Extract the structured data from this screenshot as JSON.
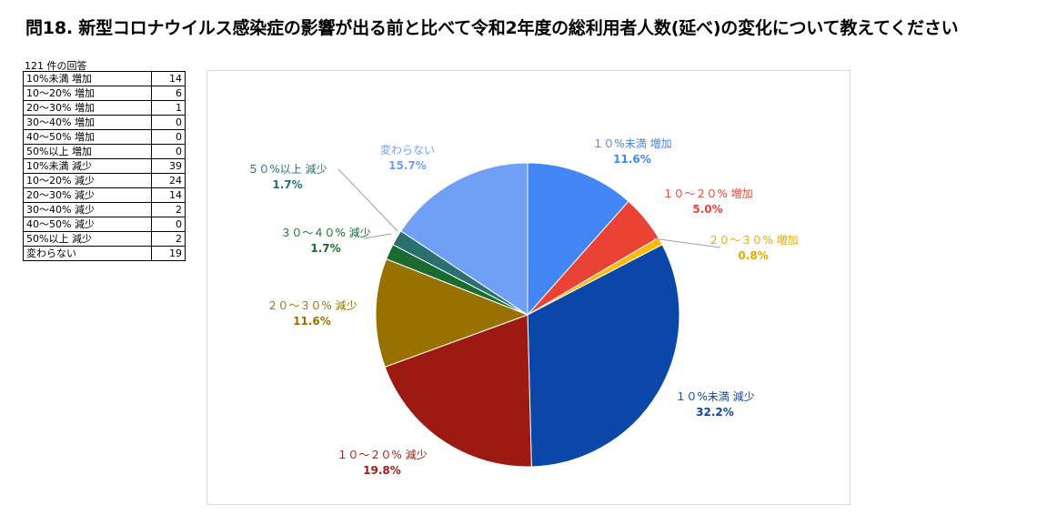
{
  "title": "問18. 新型コロナウイルス感染症の影響が出る前と比べて令和2年度の総利用者人数(延べ)の変化について教えてください",
  "response_count": "121 件の回答",
  "table": [
    {
      "label": "10%未満 増加",
      "value": "14"
    },
    {
      "label": "10～20% 増加",
      "value": "6"
    },
    {
      "label": "20～30% 増加",
      "value": "1"
    },
    {
      "label": "30～40% 増加",
      "value": "0"
    },
    {
      "label": "40～50% 増加",
      "value": "0"
    },
    {
      "label": "50%以上 増加",
      "value": "0"
    },
    {
      "label": "10%未満 減少",
      "value": "39"
    },
    {
      "label": "10～20% 減少",
      "value": "24"
    },
    {
      "label": "20～30% 減少",
      "value": "14"
    },
    {
      "label": "30～40% 減少",
      "value": "2"
    },
    {
      "label": "40～50% 減少",
      "value": "0"
    },
    {
      "label": "50%以上 減少",
      "value": "2"
    },
    {
      "label": "変わらない",
      "value": "19"
    }
  ],
  "chart_data": {
    "type": "pie",
    "title": "",
    "slices": [
      {
        "label": "１０%未満 増加",
        "value": 14,
        "pct": "11.6%",
        "color": "#4285f4"
      },
      {
        "label": "１０～２０% 増加",
        "value": 6,
        "pct": "5.0%",
        "color": "#ea4335"
      },
      {
        "label": "２０～３０% 増加",
        "value": 1,
        "pct": "0.8%",
        "color": "#fbbc04"
      },
      {
        "label": "１０%未満 減少",
        "value": 39,
        "pct": "32.2%",
        "color": "#0b47a8"
      },
      {
        "label": "１０～２０% 減少",
        "value": 24,
        "pct": "19.8%",
        "color": "#9c1a11"
      },
      {
        "label": "２０～３０% 減少",
        "value": 14,
        "pct": "11.6%",
        "color": "#987100"
      },
      {
        "label": "３０～４０% 減少",
        "value": 2,
        "pct": "1.7%",
        "color": "#1a6b2f"
      },
      {
        "label": "５０%以上 減少",
        "value": 2,
        "pct": "1.7%",
        "color": "#2a7070"
      },
      {
        "label": "変わらない",
        "value": 19,
        "pct": "15.7%",
        "color": "#6fa0f6"
      }
    ],
    "label_colors": [
      "#4285f4",
      "#ea4335",
      "#e8a600",
      "#0b47a8",
      "#9c1a11",
      "#987100",
      "#1a6b2f",
      "#2a7070",
      "#6fa0f6"
    ]
  }
}
